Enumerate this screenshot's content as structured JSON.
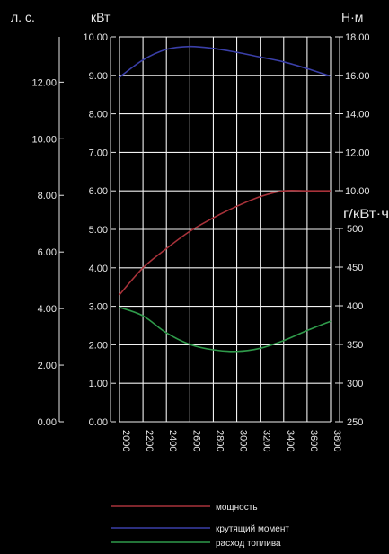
{
  "chart_data": {
    "type": "line",
    "x": [
      2000,
      2200,
      2400,
      2600,
      2800,
      3000,
      3200,
      3400,
      3600,
      3800
    ],
    "x_ticks": [
      "2000",
      "2200",
      "2400",
      "2600",
      "2800",
      "3000",
      "3200",
      "3400",
      "3600",
      "3800"
    ],
    "xlim": [
      2000,
      3800
    ],
    "axes": {
      "hp": {
        "unit": "л. с.",
        "ticks": [
          "0.00",
          "2.00",
          "4.00",
          "6.00",
          "8.00",
          "10.00",
          "12.00"
        ],
        "ylim": [
          0,
          13.6
        ]
      },
      "kw": {
        "unit": "кВт",
        "ticks": [
          "0.00",
          "1.00",
          "2.00",
          "3.00",
          "4.00",
          "5.00",
          "6.00",
          "7.00",
          "8.00",
          "9.00",
          "10.00"
        ],
        "ylim": [
          0,
          10
        ]
      },
      "torque": {
        "unit": "Н·м",
        "ticks": [
          "10.00",
          "12.00",
          "14.00",
          "16.00",
          "18.00"
        ],
        "ylim": [
          10,
          18
        ]
      },
      "fuel": {
        "unit": "г/кВт·ч",
        "ticks": [
          "250",
          "300",
          "350",
          "400",
          "450",
          "500"
        ],
        "ylim": [
          250,
          500
        ]
      }
    },
    "series": [
      {
        "name": "мощность",
        "axis": "kw",
        "color": "#a8323a",
        "values": [
          3.3,
          4.0,
          4.5,
          4.95,
          5.3,
          5.6,
          5.85,
          6.0,
          6.0,
          6.0
        ]
      },
      {
        "name": "крутящий момент",
        "axis": "torque",
        "color": "#3a3fa8",
        "values": [
          15.9,
          16.8,
          17.35,
          17.5,
          17.4,
          17.2,
          16.95,
          16.7,
          16.35,
          15.95
        ]
      },
      {
        "name": "расход топлива",
        "axis": "fuel",
        "color": "#2f9a4a",
        "values": [
          398,
          387,
          365,
          350,
          343,
          341,
          345,
          355,
          368,
          380
        ]
      }
    ],
    "grid": true,
    "legend_position": "bottom"
  }
}
